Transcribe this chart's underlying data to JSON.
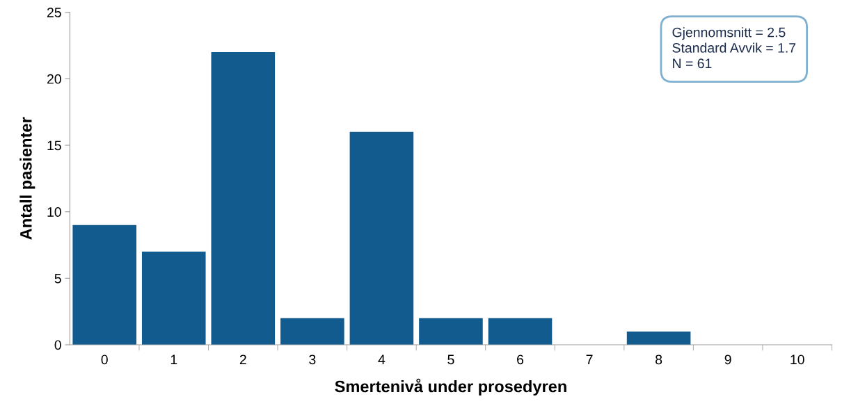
{
  "chart_data": {
    "type": "bar",
    "xlabel": "Smertenivå under prosedyren",
    "ylabel": "Antall pasienter",
    "categories": [
      "0",
      "1",
      "2",
      "3",
      "4",
      "5",
      "6",
      "7",
      "8",
      "9",
      "10"
    ],
    "values": [
      9,
      7,
      22,
      2,
      16,
      2,
      2,
      0,
      1,
      0,
      0
    ],
    "color": "#115b8f",
    "ylim": [
      0,
      25
    ],
    "yticks": [
      0,
      5,
      10,
      15,
      20,
      25
    ],
    "grid": false,
    "annotations": [
      "Gjennomsnitt = 2.5",
      "Standard Avvik = 1.7",
      "N = 61"
    ]
  }
}
